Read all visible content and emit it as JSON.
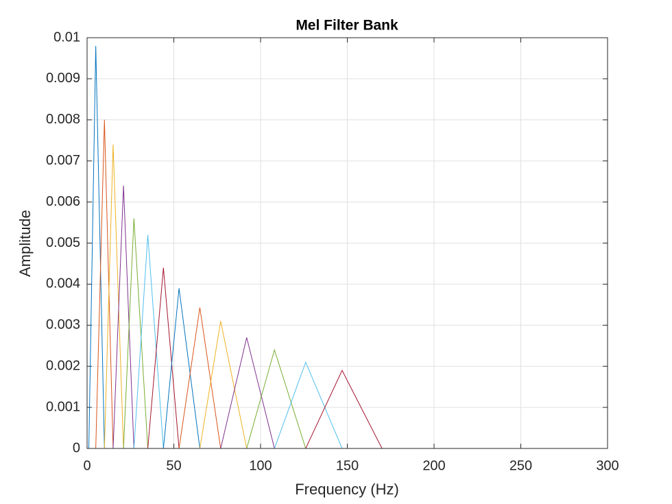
{
  "chart_data": {
    "type": "line",
    "title": "Mel Filter Bank",
    "x_label": "Frequency (Hz)",
    "y_label": "Amplitude",
    "xlim": [
      0,
      300
    ],
    "xticks": [
      0,
      50,
      100,
      150,
      200,
      250,
      300
    ],
    "ylim": [
      0,
      0.01
    ],
    "yticks": [
      0,
      0.001,
      0.002,
      0.003,
      0.004,
      0.005,
      0.006,
      0.007,
      0.008,
      0.009,
      0.01
    ],
    "grid": true,
    "series": [
      {
        "color": "#0072BD",
        "x": [
          0,
          1,
          5,
          10,
          300
        ],
        "values": [
          0,
          0,
          0.0098,
          0,
          0
        ]
      },
      {
        "color": "#D95319",
        "x": [
          0,
          5,
          10,
          15,
          300
        ],
        "values": [
          0,
          0,
          0.008,
          0,
          0
        ]
      },
      {
        "color": "#EDB120",
        "x": [
          0,
          10,
          15,
          21,
          300
        ],
        "values": [
          0,
          0,
          0.0074,
          0,
          0
        ]
      },
      {
        "color": "#7E2F8E",
        "x": [
          0,
          15,
          21,
          27,
          300
        ],
        "values": [
          0,
          0,
          0.0064,
          0,
          0
        ]
      },
      {
        "color": "#77AC30",
        "x": [
          0,
          21,
          27,
          35,
          300
        ],
        "values": [
          0,
          0,
          0.0056,
          0,
          0
        ]
      },
      {
        "color": "#4DBEEE",
        "x": [
          0,
          27,
          35,
          44,
          300
        ],
        "values": [
          0,
          0,
          0.0052,
          0,
          0
        ]
      },
      {
        "color": "#A2142F",
        "x": [
          0,
          35,
          44,
          53,
          300
        ],
        "values": [
          0,
          0,
          0.0044,
          0,
          0
        ]
      },
      {
        "color": "#0072BD",
        "x": [
          0,
          44,
          53,
          65,
          300
        ],
        "values": [
          0,
          0,
          0.0039,
          0,
          0
        ]
      },
      {
        "color": "#D95319",
        "x": [
          0,
          53,
          65,
          77,
          300
        ],
        "values": [
          0,
          0,
          0.00343,
          0,
          0
        ]
      },
      {
        "color": "#EDB120",
        "x": [
          0,
          65,
          77,
          92,
          300
        ],
        "values": [
          0,
          0,
          0.0031,
          0,
          0
        ]
      },
      {
        "color": "#7E2F8E",
        "x": [
          0,
          77,
          92,
          108,
          300
        ],
        "values": [
          0,
          0,
          0.0027,
          0,
          0
        ]
      },
      {
        "color": "#77AC30",
        "x": [
          0,
          92,
          108,
          126,
          300
        ],
        "values": [
          0,
          0,
          0.0024,
          0,
          0
        ]
      },
      {
        "color": "#4DBEEE",
        "x": [
          0,
          108,
          126,
          147,
          300
        ],
        "values": [
          0,
          0,
          0.0021,
          0,
          0
        ]
      },
      {
        "color": "#A2142F",
        "x": [
          0,
          126,
          147,
          170,
          300
        ],
        "values": [
          0,
          0,
          0.0019,
          0,
          0
        ]
      }
    ]
  }
}
